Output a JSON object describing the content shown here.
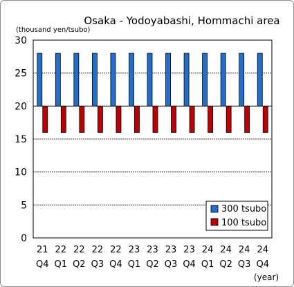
{
  "chart_data": {
    "type": "bar",
    "title": "Osaka - Yodoyabashi, Hommachi area",
    "ylabel": "(thousand yen/tsubo)",
    "xlabel": "(year)",
    "ylim": [
      0,
      30
    ],
    "yticks": [
      0,
      5,
      10,
      15,
      20,
      25,
      30
    ],
    "grid": true,
    "legend_position": "bottom-right",
    "baseline": 20,
    "categories": [
      {
        "year": "21",
        "quarter": "Q4"
      },
      {
        "year": "22",
        "quarter": "Q1"
      },
      {
        "year": "22",
        "quarter": "Q2"
      },
      {
        "year": "22",
        "quarter": "Q3"
      },
      {
        "year": "22",
        "quarter": "Q4"
      },
      {
        "year": "23",
        "quarter": "Q1"
      },
      {
        "year": "23",
        "quarter": "Q2"
      },
      {
        "year": "23",
        "quarter": "Q3"
      },
      {
        "year": "23",
        "quarter": "Q4"
      },
      {
        "year": "24",
        "quarter": "Q1"
      },
      {
        "year": "24",
        "quarter": "Q2"
      },
      {
        "year": "24",
        "quarter": "Q3"
      },
      {
        "year": "24",
        "quarter": "Q4"
      }
    ],
    "series": [
      {
        "name": "300 tsubo",
        "color": "#1f6fd1",
        "values": [
          28,
          28,
          28,
          28,
          28,
          28,
          28,
          28,
          28,
          28,
          28,
          28,
          28
        ]
      },
      {
        "name": "100 tsubo",
        "color": "#c00000",
        "values": [
          16,
          16,
          16,
          16,
          16,
          16,
          16,
          16,
          16,
          16,
          16,
          16,
          16
        ]
      }
    ]
  }
}
